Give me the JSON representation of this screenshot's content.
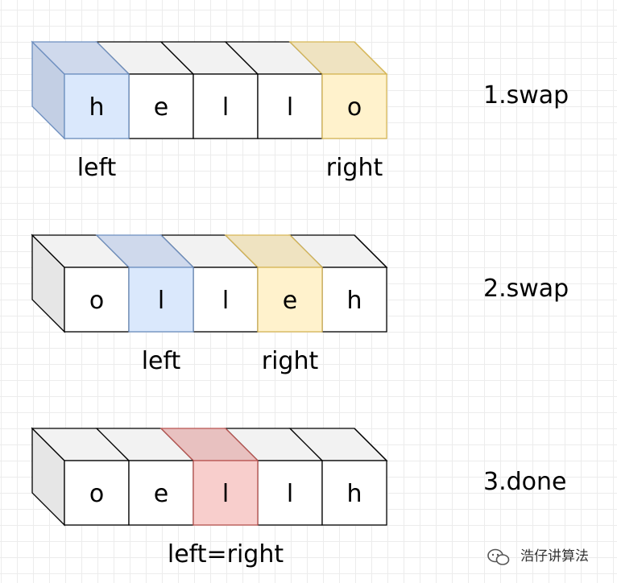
{
  "colors": {
    "default_face": "#ffffff",
    "default_top": "#f2f2f2",
    "default_side": "#e6e6e6",
    "default_stroke": "#000000",
    "left_face": "#dae8fc",
    "left_top": "#cfd9ec",
    "left_stroke": "#6c8ebf",
    "left_side": "#c3cfe4",
    "right_face": "#fff2cc",
    "right_top": "#efe3c1",
    "right_stroke": "#d6b656",
    "meet_face": "#f8cecc",
    "meet_top": "#e8c1c0",
    "meet_stroke": "#b85450"
  },
  "steps": [
    {
      "label": "1.swap",
      "cells": [
        "h",
        "e",
        "l",
        "l",
        "o"
      ],
      "left_index": 0,
      "right_index": 4,
      "left_label": "left",
      "right_label": "right",
      "merged_label": ""
    },
    {
      "label": "2.swap",
      "cells": [
        "o",
        "l",
        "l",
        "e",
        "h"
      ],
      "left_index": 1,
      "right_index": 3,
      "left_label": "left",
      "right_label": "right",
      "merged_label": ""
    },
    {
      "label": "3.done",
      "cells": [
        "o",
        "e",
        "l",
        "l",
        "h"
      ],
      "left_index": 2,
      "right_index": 2,
      "left_label": "",
      "right_label": "",
      "merged_label": "left=right"
    }
  ],
  "watermark": {
    "icon": "wechat-icon",
    "text": "浩仔讲算法"
  }
}
